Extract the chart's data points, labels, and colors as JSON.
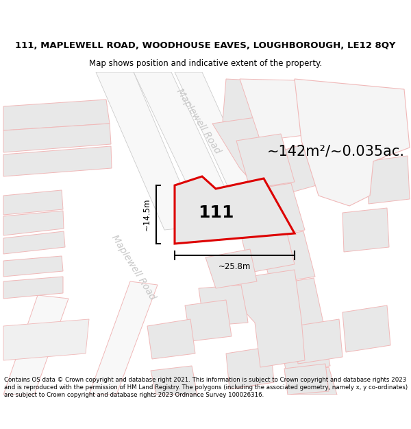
{
  "title": "111, MAPLEWELL ROAD, WOODHOUSE EAVES, LOUGHBOROUGH, LE12 8QY",
  "subtitle": "Map shows position and indicative extent of the property.",
  "footer": "Contains OS data © Crown copyright and database right 2021. This information is subject to Crown copyright and database rights 2023 and is reproduced with the permission of HM Land Registry. The polygons (including the associated geometry, namely x, y co-ordinates) are subject to Crown copyright and database rights 2023 Ordnance Survey 100026316.",
  "area_label": "~142m²/~0.035ac.",
  "number_label": "111",
  "dim_width": "~25.8m",
  "dim_height": "~14.5m",
  "road_label_upper": "Maplewell Road",
  "road_label_lower": "Maplewell Road",
  "bg_color": "#ffffff",
  "map_bg": "#ffffff",
  "plot_fill": "#e8e8e8",
  "plot_outline_color": "#dd0000",
  "road_line_color": "#f0b8b8",
  "building_fill": "#e8e8e8",
  "building_outline": "#f0b8b8",
  "dim_line_color": "#000000",
  "text_color": "#000000",
  "road_text_color": "#c8c8c8",
  "title_fontsize": 9.5,
  "subtitle_fontsize": 8.5,
  "footer_fontsize": 6.2,
  "area_fontsize": 15,
  "number_fontsize": 18,
  "dim_fontsize": 8.5,
  "road_fontsize": 10
}
